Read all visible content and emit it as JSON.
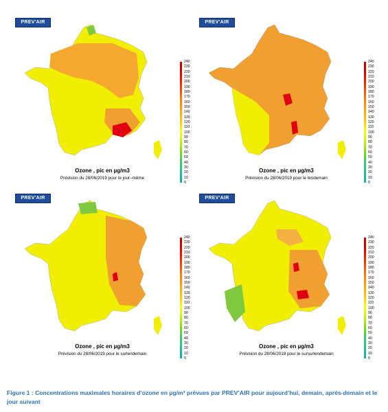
{
  "logo_text": "PREV'AIR",
  "legend_values": [
    "240",
    "230",
    "220",
    "210",
    "200",
    "190",
    "180",
    "170",
    "160",
    "150",
    "140",
    "130",
    "120",
    "110",
    "100",
    "90",
    "80",
    "70",
    "60",
    "50",
    "40",
    "30",
    "20",
    "10",
    "0"
  ],
  "panels": [
    {
      "title": "Ozone , pic en µg/m3",
      "subtitle": "Prévision du 28/06/2019 pour le jour–même"
    },
    {
      "title": "Ozone , pic en µg/m3",
      "subtitle": "Prévision du 28/06/2019 pour le lendemain"
    },
    {
      "title": "Ozone , pic en µg/m3",
      "subtitle": "Prévision du 28/06/2019 pour le surlendemain"
    },
    {
      "title": "Ozone , pic en µg/m3",
      "subtitle": "Prévision du 28/06/2019 pour le sursurlendemain"
    }
  ],
  "figure_caption": "Figure 1 : Concentrations maximales horaires d’ozone en µg/m³ prévues par PREV’AIR pour aujourd’hui, demain, après-demain et le jour suivant",
  "colors": {
    "yellow": "#f2f200",
    "orange": "#f0a030",
    "red": "#e00010",
    "green": "#80c840",
    "caption": "#2e74b5"
  }
}
